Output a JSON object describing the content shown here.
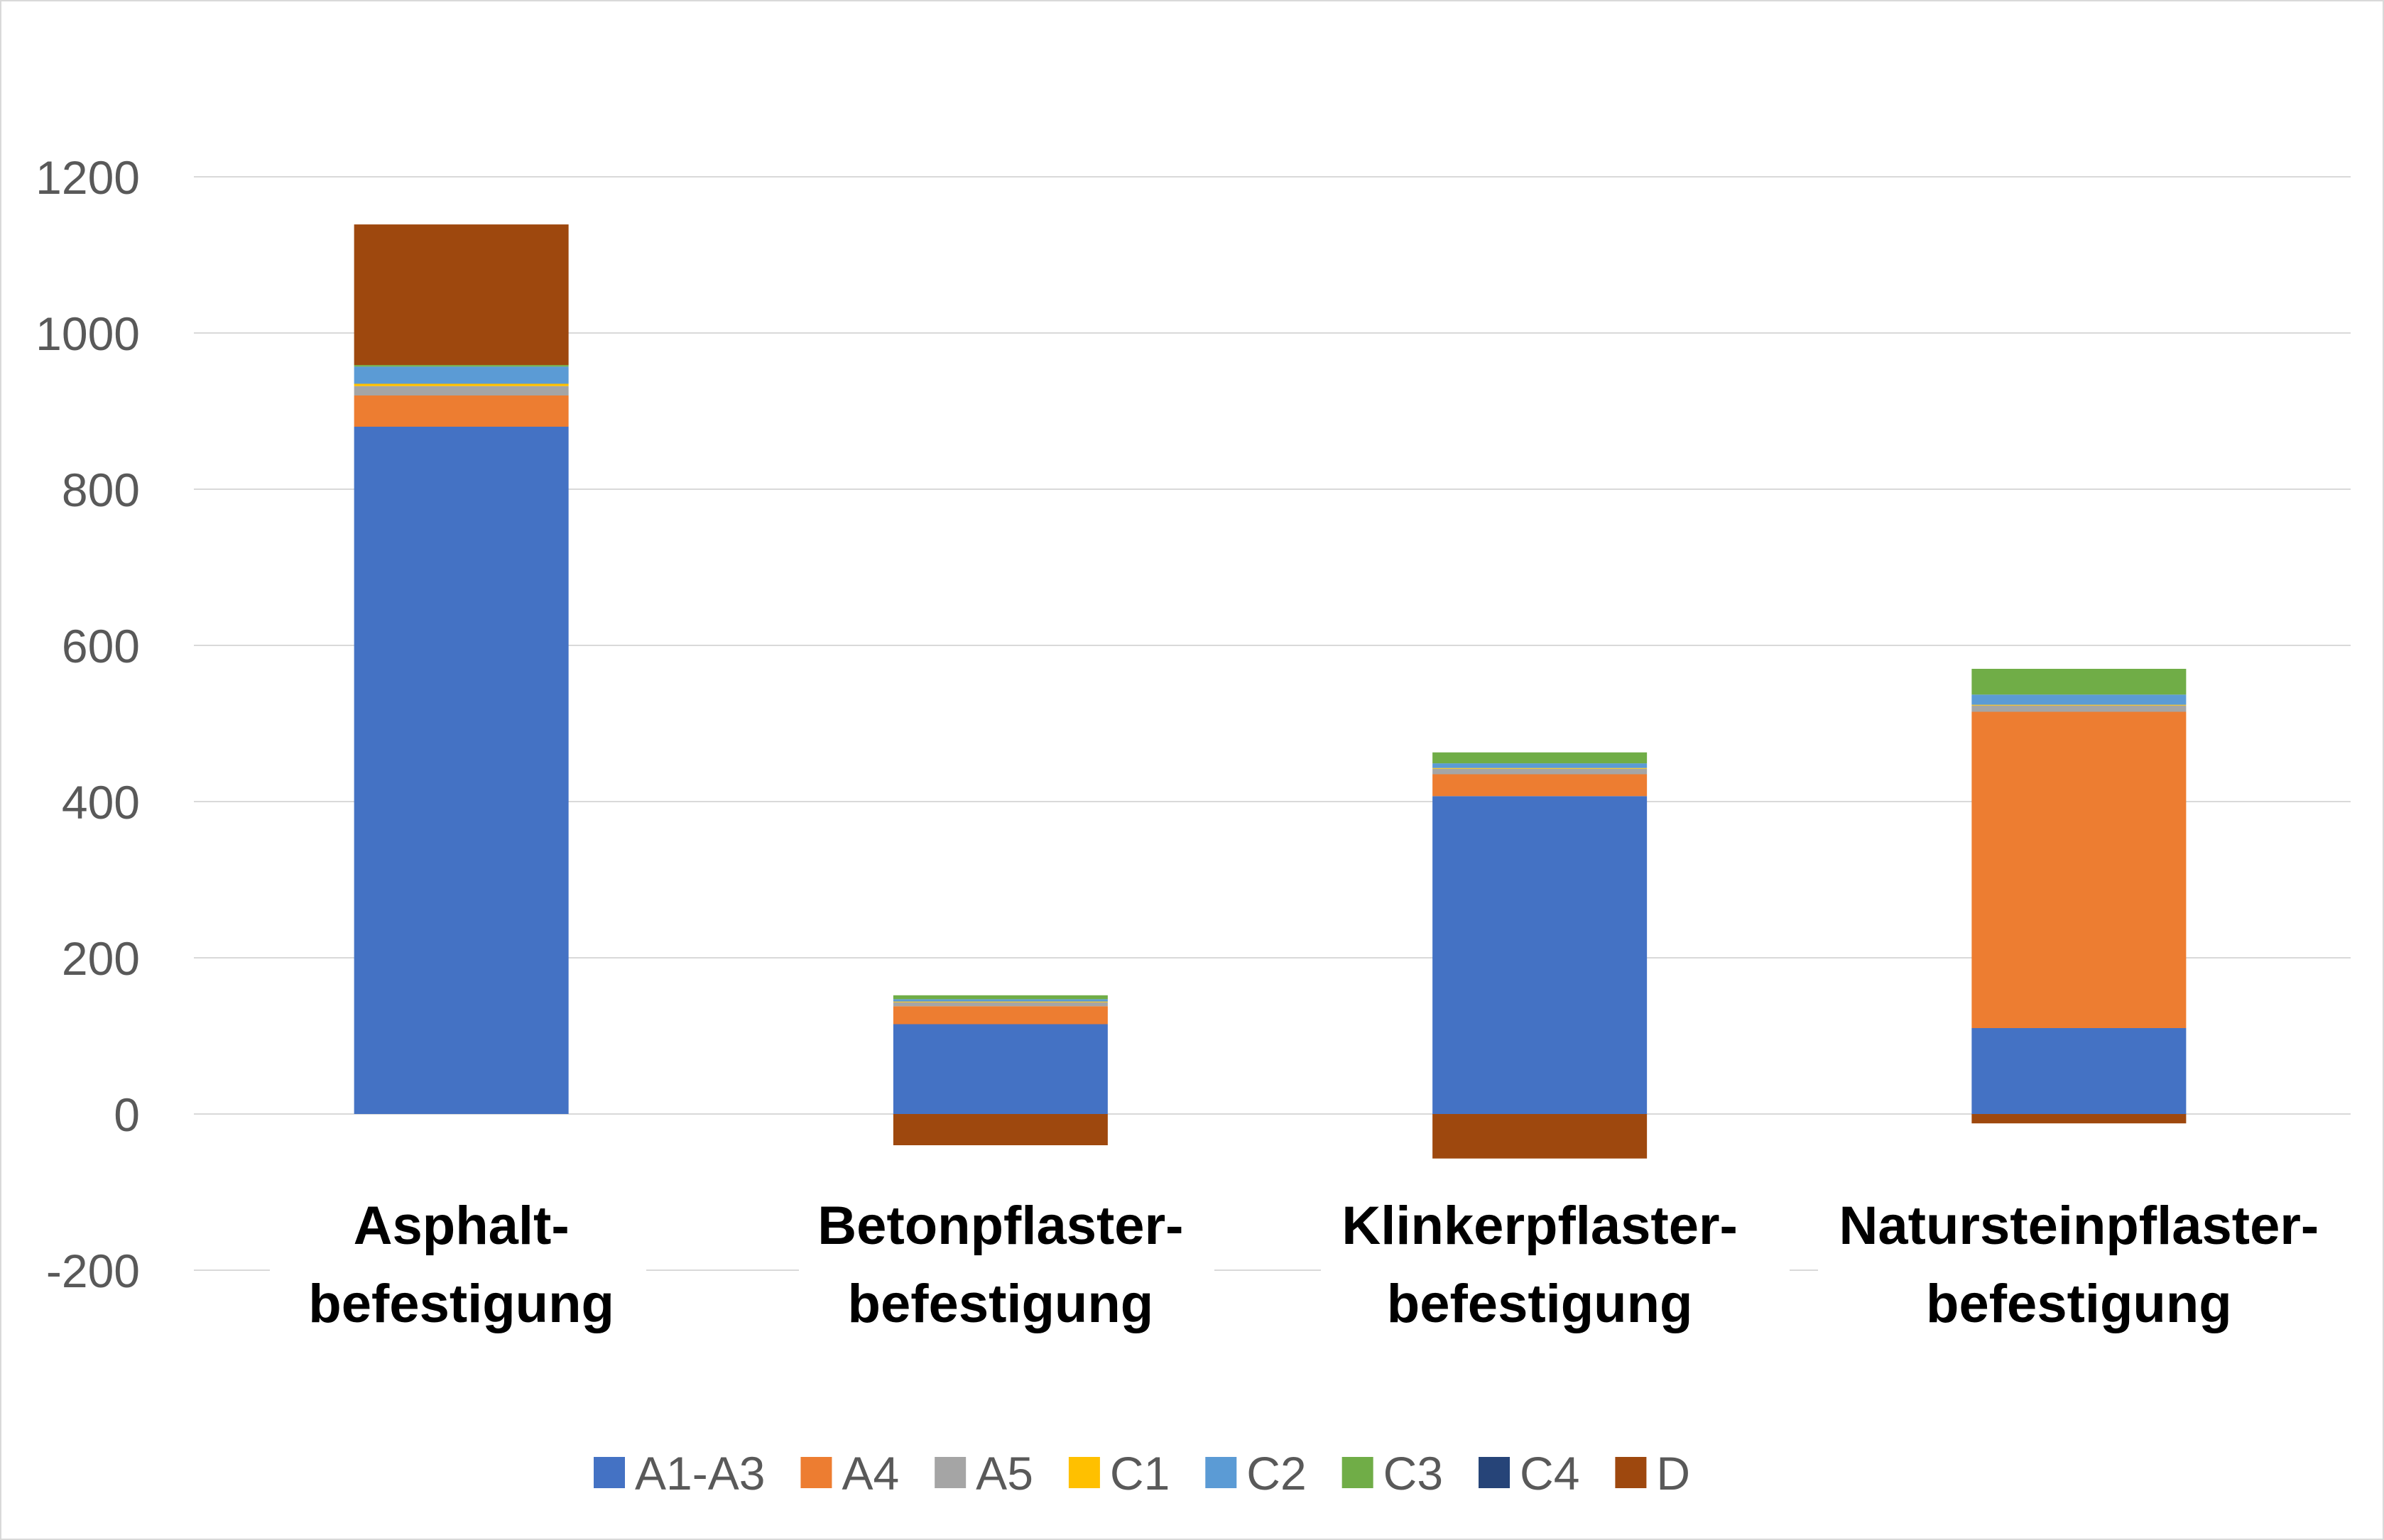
{
  "chart_data": {
    "type": "bar",
    "stacked": true,
    "title": "",
    "xlabel": "",
    "ylabel": "",
    "ylim": [
      -200,
      1200
    ],
    "yticks": [
      -200,
      0,
      200,
      400,
      600,
      800,
      1000,
      1200
    ],
    "grid": true,
    "legend_position": "bottom",
    "categories": [
      [
        "Asphalt-",
        "befestigung"
      ],
      [
        "Betonpflaster-",
        "befestigung"
      ],
      [
        "Klinkerpflaster-",
        "befestigung"
      ],
      [
        "Natursteinpflaster-",
        "befestigung"
      ]
    ],
    "series": [
      {
        "name": "A1-A3",
        "color": "#4472C4",
        "values": [
          880,
          115,
          407,
          110
        ]
      },
      {
        "name": "A4",
        "color": "#ED7D31",
        "values": [
          40,
          23,
          28,
          405
        ]
      },
      {
        "name": "A5",
        "color": "#A5A5A5",
        "values": [
          12,
          5,
          7,
          8
        ]
      },
      {
        "name": "C1",
        "color": "#FFC000",
        "values": [
          3,
          1,
          1,
          1
        ]
      },
      {
        "name": "C2",
        "color": "#5B9BD5",
        "values": [
          22,
          3,
          6,
          13
        ]
      },
      {
        "name": "C3",
        "color": "#70AD47",
        "values": [
          2,
          5,
          14,
          33
        ]
      },
      {
        "name": "C4",
        "color": "#264478",
        "values": [
          0,
          0,
          0,
          0
        ]
      },
      {
        "name": "D",
        "color": "#9E480E",
        "values": [
          180,
          -40,
          -57,
          -12
        ]
      }
    ]
  }
}
